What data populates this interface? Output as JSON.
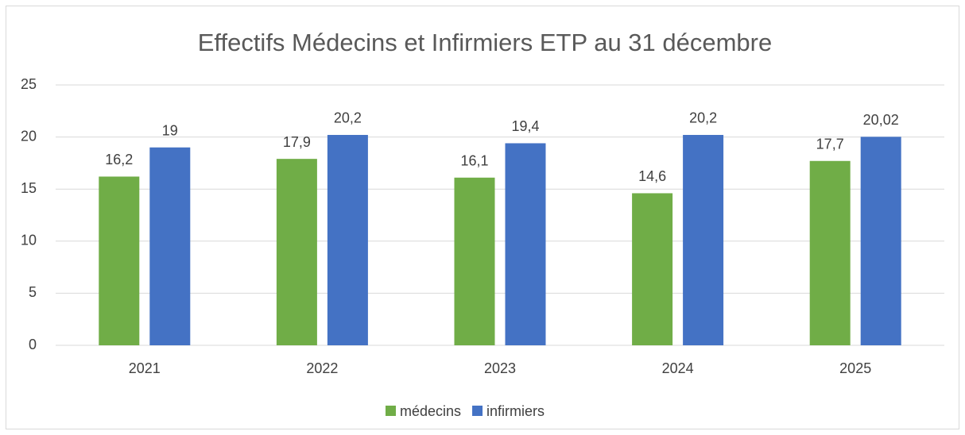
{
  "chart_data": {
    "type": "bar",
    "title": "Effectifs Médecins et Infirmiers ETP au 31 décembre",
    "categories": [
      "2021",
      "2022",
      "2023",
      "2024",
      "2025"
    ],
    "series": [
      {
        "name": "médecins",
        "color": "#70ad47",
        "values": [
          16.2,
          17.9,
          16.1,
          14.6,
          17.7
        ],
        "value_labels": [
          "16,2",
          "17,9",
          "16,1",
          "14,6",
          "17,7"
        ]
      },
      {
        "name": "infirmiers",
        "color": "#4472c4",
        "values": [
          19,
          20.2,
          19.4,
          20.2,
          20.02
        ],
        "value_labels": [
          "19",
          "20,2",
          "19,4",
          "20,2",
          "20,02"
        ]
      }
    ],
    "ylim": [
      0,
      25
    ],
    "yticks": [
      0,
      5,
      10,
      15,
      20,
      25
    ],
    "grid": true,
    "legend": "bottom"
  }
}
